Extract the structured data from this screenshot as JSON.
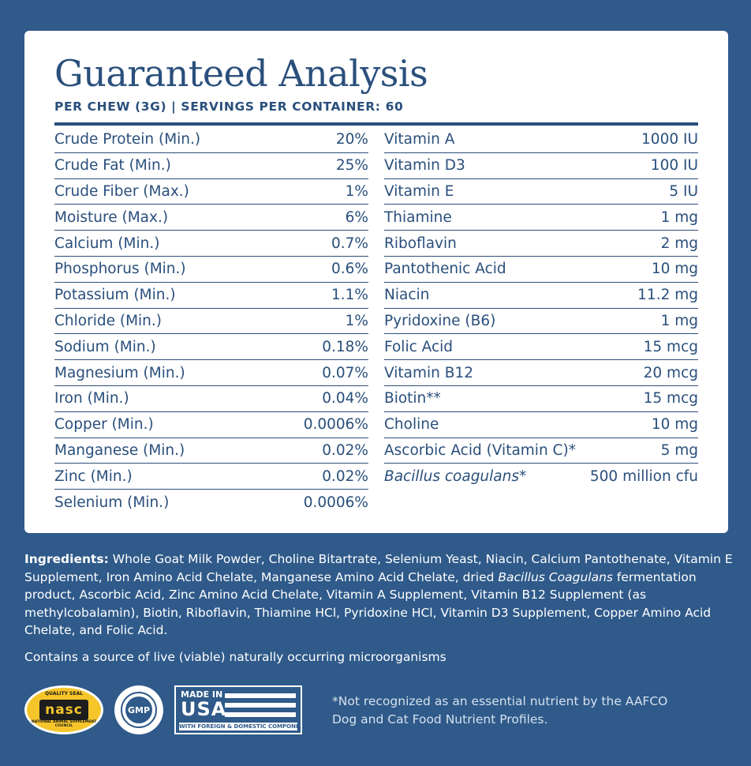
{
  "header": {
    "title": "Guaranteed Analysis",
    "subtitle": "PER CHEW (3G) | SERVINGS PER CONTAINER: 60"
  },
  "left_column": [
    {
      "name": "Crude Protein (Min.)",
      "value": "20%"
    },
    {
      "name": "Crude Fat (Min.)",
      "value": "25%"
    },
    {
      "name": "Crude Fiber (Max.)",
      "value": "1%"
    },
    {
      "name": "Moisture (Max.)",
      "value": "6%"
    },
    {
      "name": "Calcium (Min.)",
      "value": "0.7%"
    },
    {
      "name": "Phosphorus (Min.)",
      "value": "0.6%"
    },
    {
      "name": "Potassium (Min.)",
      "value": "1.1%"
    },
    {
      "name": "Chloride (Min.)",
      "value": "1%"
    },
    {
      "name": "Sodium (Min.)",
      "value": "0.18%"
    },
    {
      "name": "Magnesium (Min.)",
      "value": "0.07%"
    },
    {
      "name": "Iron (Min.)",
      "value": "0.04%"
    },
    {
      "name": "Copper (Min.)",
      "value": "0.0006%"
    },
    {
      "name": "Manganese (Min.)",
      "value": "0.02%"
    },
    {
      "name": "Zinc (Min.)",
      "value": "0.02%"
    },
    {
      "name": "Selenium (Min.)",
      "value": "0.0006%"
    }
  ],
  "right_column": [
    {
      "name": "Vitamin A",
      "value": "1000 IU"
    },
    {
      "name": "Vitamin D3",
      "value": "100 IU"
    },
    {
      "name": "Vitamin E",
      "value": "5 IU"
    },
    {
      "name": "Thiamine",
      "value": "1 mg"
    },
    {
      "name": "Riboflavin",
      "value": "2 mg"
    },
    {
      "name": "Pantothenic Acid",
      "value": "10 mg"
    },
    {
      "name": "Niacin",
      "value": "11.2 mg"
    },
    {
      "name": "Pyridoxine (B6)",
      "value": "1 mg"
    },
    {
      "name": "Folic Acid",
      "value": "15 mcg"
    },
    {
      "name": "Vitamin B12",
      "value": "20 mcg"
    },
    {
      "name": "Biotin**",
      "value": "15 mcg"
    },
    {
      "name": "Choline",
      "value": "10 mg"
    },
    {
      "name": "Ascorbic Acid (Vitamin C)*",
      "value": "5 mg"
    },
    {
      "name": "Bacillus coagulans*",
      "value": "500 million cfu"
    }
  ],
  "ingredients": {
    "label": "Ingredients:",
    "text_1": " Whole Goat Milk Powder, Choline Bitartrate, Selenium Yeast, Niacin, Calcium Pantothenate, Vitamin E Supplement, Iron Amino Acid Chelate, Manganese Amino Acid Chelate, dried ",
    "italic": "Bacillus Coagulans",
    "text_2": " fermentation product, Ascorbic Acid, Zinc Amino Acid Chelate, Vitamin A Supplement, Vitamin B12 Supplement (as methylcobalamin), Biotin, Riboflavin, Thiamine HCl, Pyridoxine HCl, Vitamin D3 Supplement, Copper Amino Acid Chelate, and Folic Acid."
  },
  "live_note": "Contains a source of live (viable) naturally occurring microorganisms",
  "badges": {
    "nasc_top": "QUALITY SEAL",
    "nasc_mark": "nasc",
    "nasc_bottom": "NATIONAL ANIMAL SUPPLEMENT COUNCIL",
    "gmp_mark": "GMP",
    "usa_made": "MADE IN",
    "usa_mark": "USA",
    "usa_foot": "WITH FOREIGN & DOMESTIC COMPONENTS"
  },
  "footnote": "*Not recognized as an essential nutrient by the AAFCO Dog and Cat Food Nutrient Profiles.",
  "colors": {
    "background": "#2f5a8a",
    "panel": "#ffffff",
    "text_dark": "#2a4f7c",
    "nasc_yellow": "#f5c52a"
  }
}
